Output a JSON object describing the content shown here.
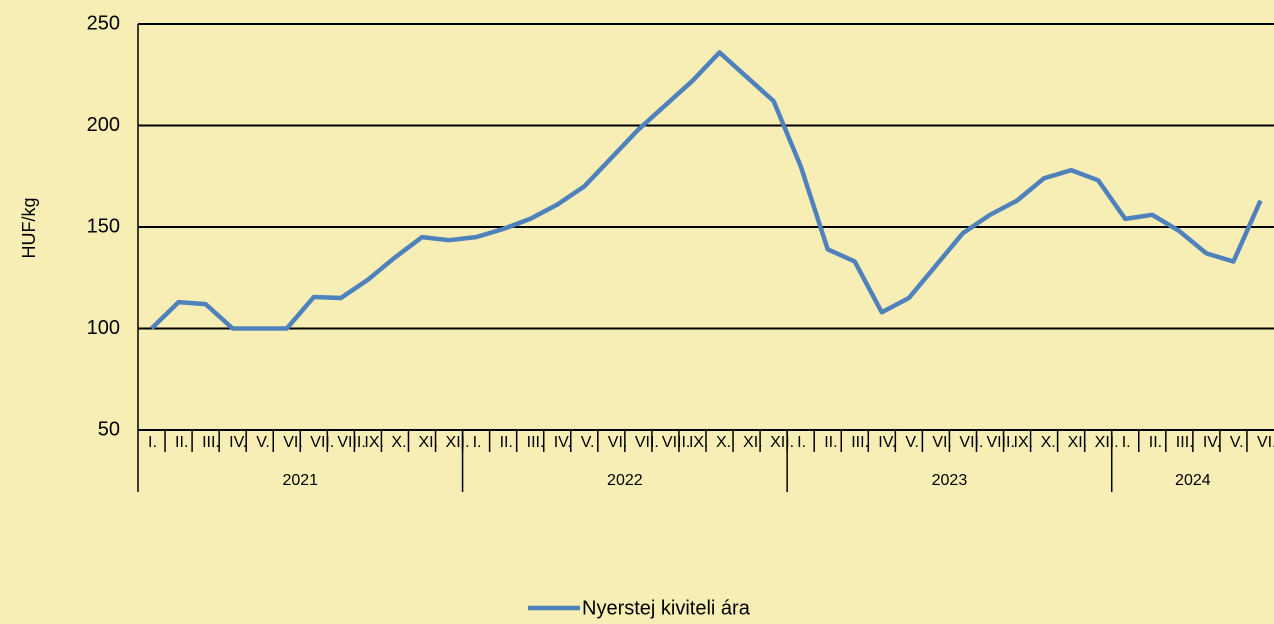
{
  "chart_data": {
    "type": "line",
    "y_axis_label": "HUF/kg",
    "categories": [
      "I.",
      "II.",
      "III.",
      "IV.",
      "V.",
      "VI.",
      "VII.",
      "VIII.",
      "IX.",
      "X.",
      "XI.",
      "XII.",
      "I.",
      "II.",
      "III.",
      "IV.",
      "V.",
      "VI.",
      "VII.",
      "VIII.",
      "IX.",
      "X.",
      "XI.",
      "XII.",
      "I.",
      "II.",
      "III.",
      "IV.",
      "V.",
      "VI.",
      "VII.",
      "VIII.",
      "IX.",
      "X.",
      "XI.",
      "XII.",
      "I.",
      "II.",
      "III.",
      "IV.",
      "V.",
      "VI."
    ],
    "year_labels": [
      "2021",
      "2022",
      "2023",
      "2024"
    ],
    "series": [
      {
        "name": "Nyerstej kiviteli ára",
        "color": "#4f81bd",
        "values": [
          100,
          113,
          112,
          100,
          100,
          100,
          115.5,
          115,
          124,
          135,
          145,
          143.5,
          145,
          149,
          154,
          161,
          170,
          184,
          198,
          210,
          222,
          236,
          224,
          212,
          180,
          139,
          133,
          108,
          115,
          131,
          147,
          156,
          163,
          174,
          178,
          173,
          154,
          156,
          148,
          137,
          133,
          163
        ]
      }
    ],
    "ylim": [
      50,
      250
    ],
    "yticks": [
      50,
      100,
      150,
      200,
      250
    ],
    "grid": true,
    "legend": "bottom"
  }
}
